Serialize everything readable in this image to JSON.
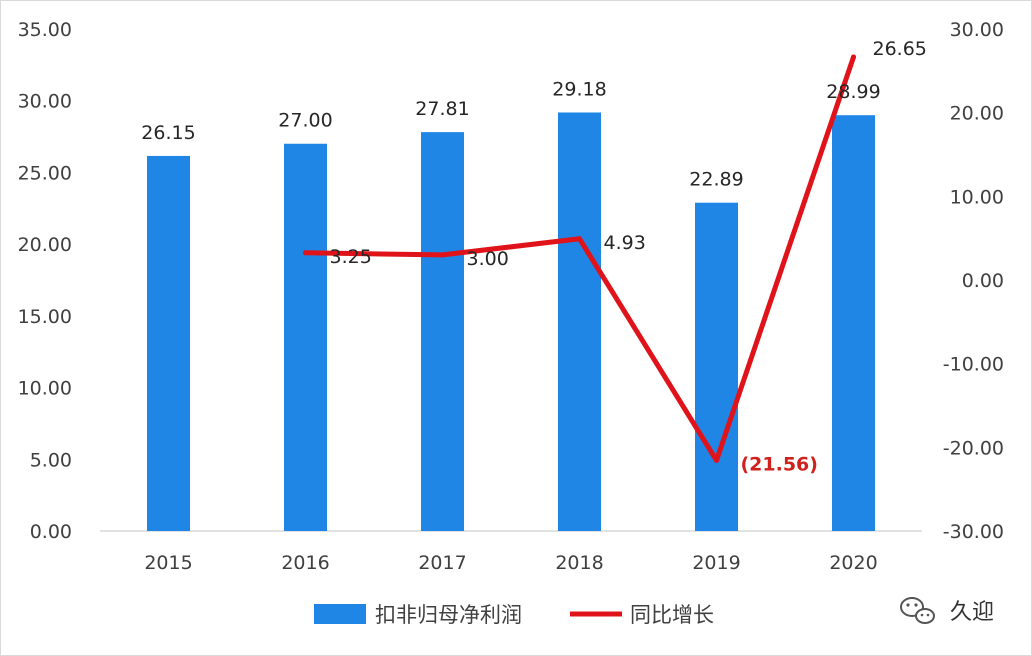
{
  "chart_data": {
    "type": "bar",
    "categories": [
      "2015",
      "2016",
      "2017",
      "2018",
      "2019",
      "2020"
    ],
    "series": [
      {
        "name": "扣非归母净利润",
        "type": "bar",
        "axis": "left",
        "color": "#1f86e5",
        "values": [
          26.15,
          27.0,
          27.81,
          29.18,
          22.89,
          28.99
        ],
        "labels": [
          "26.15",
          "27.00",
          "27.81",
          "29.18",
          "22.89",
          "28.99"
        ]
      },
      {
        "name": "同比增长",
        "type": "line",
        "axis": "right",
        "color": "#e0131a",
        "values": [
          null,
          3.25,
          3.0,
          4.93,
          -21.56,
          26.65
        ],
        "labels": [
          "",
          "3.25",
          "3.00",
          "4.93",
          "(21.56)",
          "26.65"
        ]
      }
    ],
    "y_left": {
      "range": [
        0,
        35
      ],
      "ticks": [
        "35.00",
        "30.00",
        "25.00",
        "20.00",
        "15.00",
        "10.00",
        "5.00",
        "0.00"
      ]
    },
    "y_right": {
      "range": [
        -30,
        30
      ],
      "ticks": [
        "30.00",
        "20.00",
        "10.00",
        "0.00",
        "-10.00",
        "-20.00",
        "-30.00"
      ]
    },
    "grid": false,
    "legend_position": "bottom"
  },
  "watermark": {
    "icon": "wechat-icon",
    "text": "久迎"
  }
}
